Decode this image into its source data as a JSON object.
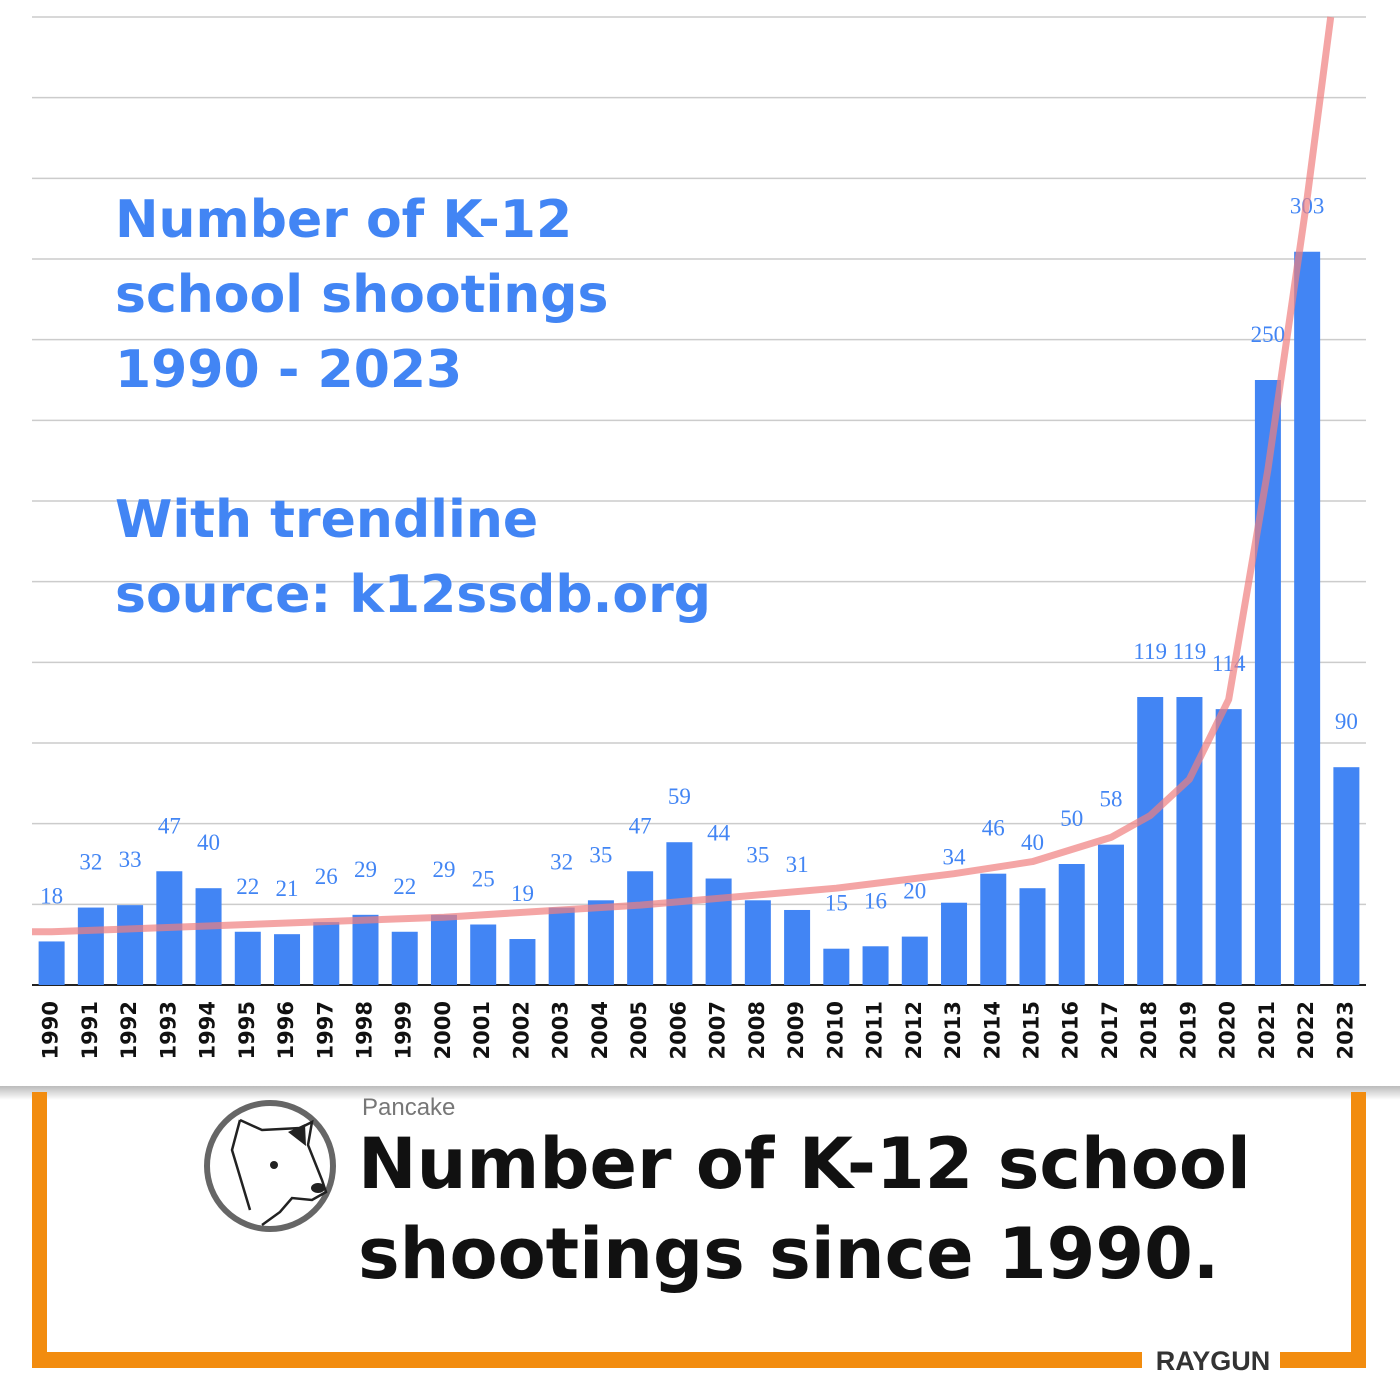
{
  "chart_data": {
    "type": "bar",
    "title": [
      "Number of K-12",
      "school shootings",
      "1990 - 2023"
    ],
    "subtitle": [
      "With trendline",
      "source: k12ssdb.org"
    ],
    "categories": [
      "1990",
      "1991",
      "1992",
      "1993",
      "1994",
      "1995",
      "1996",
      "1997",
      "1998",
      "1999",
      "2000",
      "2001",
      "2002",
      "2003",
      "2004",
      "2005",
      "2006",
      "2007",
      "2008",
      "2009",
      "2010",
      "2011",
      "2012",
      "2013",
      "2014",
      "2015",
      "2016",
      "2017",
      "2018",
      "2019",
      "2020",
      "2021",
      "2022",
      "2023"
    ],
    "values": [
      18,
      32,
      33,
      47,
      40,
      22,
      21,
      26,
      29,
      22,
      29,
      25,
      19,
      32,
      35,
      47,
      59,
      44,
      35,
      31,
      15,
      16,
      20,
      34,
      46,
      40,
      50,
      58,
      119,
      119,
      114,
      250,
      303,
      90
    ],
    "color": "#4285f4",
    "ylim": [
      0,
      400
    ],
    "yticks": [
      0,
      33.33,
      66.67,
      100,
      133.33,
      166.67,
      200,
      233.33,
      266.67,
      300,
      333.33,
      366.67,
      400
    ],
    "show_ytick_labels": false,
    "grid": true,
    "trendline": {
      "color": "#f07f7f",
      "x": [
        1989.5,
        1990,
        1995,
        2000,
        2005,
        2010,
        2013,
        2015,
        2016,
        2017,
        2018,
        2019,
        2020,
        2021,
        2022,
        2022.6
      ],
      "values": [
        22,
        22,
        25,
        28,
        33,
        40,
        46,
        51,
        56,
        61,
        70,
        85,
        118,
        213,
        325,
        400
      ]
    }
  },
  "post": {
    "author": "Pancake",
    "text": [
      "Number of K-12 school",
      "shootings since 1990."
    ],
    "brand": "RAYGUN"
  }
}
